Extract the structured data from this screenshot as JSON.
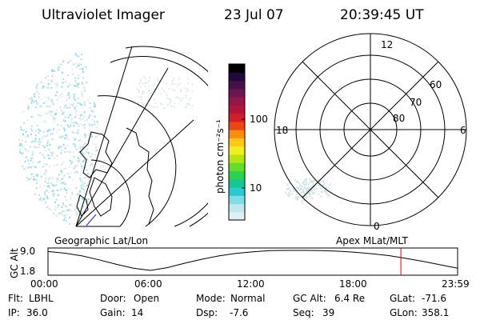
{
  "header": {
    "instrument": "Ultraviolet Imager",
    "date": "23 Jul 07",
    "time": "20:39:45 UT"
  },
  "colorbar": {
    "label": "photon cm⁻²s⁻¹",
    "ticks": [
      "100",
      "10"
    ],
    "colors": [
      "#dfeff2",
      "#c0e6ee",
      "#7fdde8",
      "#28cbd4",
      "#14c896",
      "#28d24a",
      "#64dc28",
      "#b4e614",
      "#f0f01e",
      "#ffc814",
      "#ff8c0a",
      "#f04614",
      "#d21e28",
      "#b4143c",
      "#96144a",
      "#6e1450",
      "#46104a",
      "#1e0a3c",
      "#000000"
    ]
  },
  "polar_plot": {
    "mlt_labels": [
      "12",
      "18",
      "6",
      "0"
    ],
    "lat_labels": [
      "60",
      "70",
      "80"
    ]
  },
  "map_labels": {
    "left": "Geographic Lat/Lon",
    "right": "Apex MLat/MLT"
  },
  "timeline": {
    "axis_label": "GC Alt",
    "y_ticks": [
      "9.0",
      "1.8"
    ],
    "x_ticks": [
      "00:00",
      "06:00",
      "12:00",
      "18:00",
      "23:59"
    ],
    "marker_color": "#e00000"
  },
  "chart_data": {
    "type": "line",
    "title": "",
    "xlabel": "",
    "ylabel": "GC Alt",
    "x": [
      "00:00",
      "01:00",
      "02:00",
      "03:00",
      "04:00",
      "05:00",
      "06:00",
      "07:00",
      "08:00",
      "09:00",
      "10:00",
      "11:00",
      "12:00",
      "13:00",
      "14:00",
      "15:00",
      "16:00",
      "17:00",
      "18:00",
      "19:00",
      "20:00",
      "21:00",
      "22:00",
      "23:00",
      "23:59"
    ],
    "series": [
      {
        "values": [
          8.6,
          8.0,
          7.0,
          5.6,
          4.0,
          2.6,
          1.8,
          2.8,
          4.4,
          5.8,
          7.0,
          7.9,
          8.5,
          8.9,
          9.0,
          9.0,
          8.9,
          8.7,
          8.3,
          7.8,
          7.1,
          6.1,
          5.0,
          3.8,
          2.6
        ]
      }
    ],
    "ylim": [
      1.8,
      9.0
    ],
    "marker_time": "20:39:45"
  },
  "status": {
    "row1": [
      {
        "label": "Flt:",
        "value": "LBHL"
      },
      {
        "label": "Door:",
        "value": "Open"
      },
      {
        "label": "Mode:",
        "value": "Normal"
      },
      {
        "label": "GC Alt:",
        "value": "6.4 Re"
      },
      {
        "label": "GLat:",
        "value": "-71.6"
      }
    ],
    "row2": [
      {
        "label": "IP:",
        "value": "36.0"
      },
      {
        "label": "Gain:",
        "value": "14"
      },
      {
        "label": "Dsp:",
        "value": "-7.6"
      },
      {
        "label": "Seq:",
        "value": "39"
      },
      {
        "label": "GLon:",
        "value": "358.1"
      }
    ]
  }
}
